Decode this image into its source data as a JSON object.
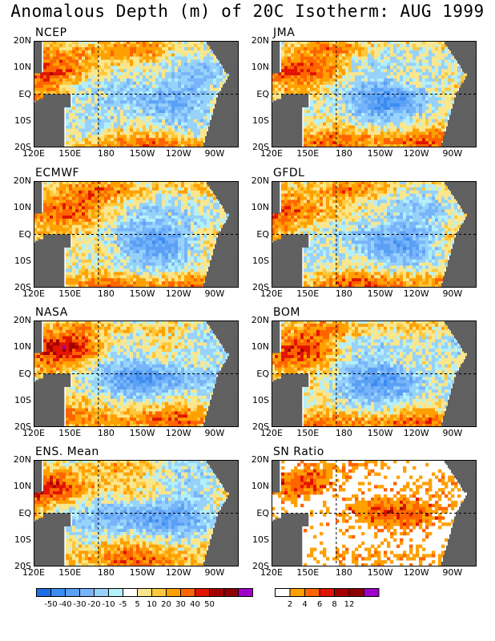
{
  "title": "Anomalous Depth (m) of 20C Isotherm: AUG 1999",
  "lat_labels": [
    "20N",
    "10N",
    "EQ",
    "10S",
    "20S"
  ],
  "lon_labels": [
    "120E",
    "150E",
    "180",
    "150W",
    "120W",
    "90W"
  ],
  "panels": [
    {
      "label": "NCEP",
      "kind": "anom",
      "seed": 11
    },
    {
      "label": "JMA",
      "kind": "anom",
      "seed": 23
    },
    {
      "label": "ECMWF",
      "kind": "anom",
      "seed": 37
    },
    {
      "label": "GFDL",
      "kind": "anom",
      "seed": 41
    },
    {
      "label": "NASA",
      "kind": "anom",
      "seed": 53
    },
    {
      "label": "BOM",
      "kind": "anom",
      "seed": 67
    },
    {
      "label": "ENS. Mean",
      "kind": "anom",
      "seed": 79
    },
    {
      "label": "SN Ratio",
      "kind": "snr",
      "seed": 83
    }
  ],
  "anomaly_colorbar": {
    "labels": [
      "-50",
      "-40",
      "-30",
      "-20",
      "-10",
      "-5",
      "5",
      "10",
      "20",
      "30",
      "40",
      "50"
    ],
    "colors": [
      "#1e6ee6",
      "#3c8cf0",
      "#5aa0f5",
      "#78b4fa",
      "#96d2fa",
      "#b4f0fa",
      "#ffffff",
      "#fae68c",
      "#ffc83c",
      "#ffa000",
      "#ff6400",
      "#e11400",
      "#a50000",
      "#8c0000",
      "#a000c8"
    ]
  },
  "snr_colorbar": {
    "labels": [
      "2",
      "4",
      "6",
      "8",
      "12"
    ],
    "colors": [
      "#ffffff",
      "#ffa000",
      "#ff6400",
      "#e11400",
      "#a50000",
      "#8c0000",
      "#a000c8"
    ]
  },
  "land_color": "#606060"
}
